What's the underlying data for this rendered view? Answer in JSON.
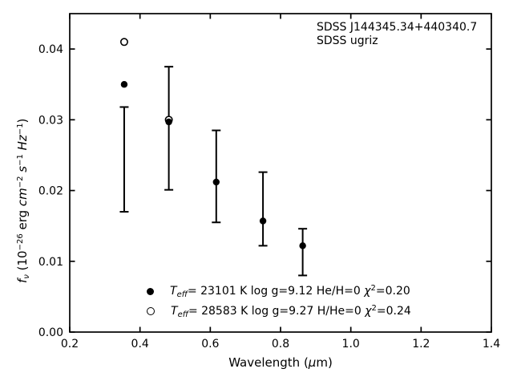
{
  "annotation": {
    "line1": "SDSS J144345.34+440340.7",
    "line2": "SDSS ugriz"
  },
  "chart_data": {
    "type": "scatter",
    "title": "",
    "xlabel_text": "Wavelength (μm)",
    "ylabel_text": "fν (10−26 erg cm−2 s−1 Hz−1)",
    "xlabel_segments": [
      {
        "text": "Wavelength ("
      },
      {
        "text": "μ",
        "italic": true
      },
      {
        "text": "m)"
      }
    ],
    "ylabel_segments": [
      {
        "text": "f",
        "italic": true
      },
      {
        "text": "ν",
        "italic": true,
        "script": "sub"
      },
      {
        "text": " (10"
      },
      {
        "text": "−26",
        "script": "sup"
      },
      {
        "text": " erg "
      },
      {
        "text": "cm",
        "italic": true
      },
      {
        "text": "−2",
        "script": "sup"
      },
      {
        "text": " "
      },
      {
        "text": "s",
        "italic": true
      },
      {
        "text": "−1",
        "script": "sup"
      },
      {
        "text": " "
      },
      {
        "text": "Hz",
        "italic": true
      },
      {
        "text": "−1",
        "script": "sup"
      },
      {
        "text": ")"
      }
    ],
    "xlim": [
      0.2,
      1.4
    ],
    "ylim": [
      0.0,
      0.045
    ],
    "x_ticks": {
      "values": [
        0.2,
        0.4,
        0.6,
        0.8,
        1.0,
        1.2,
        1.4
      ],
      "labels": [
        "0.2",
        "0.4",
        "0.6",
        "0.8",
        "1.0",
        "1.2",
        "1.4"
      ]
    },
    "y_ticks": {
      "values": [
        0.0,
        0.01,
        0.02,
        0.03,
        0.04
      ],
      "labels": [
        "0.00",
        "0.01",
        "0.02",
        "0.03",
        "0.04"
      ]
    },
    "grid": false,
    "tick_direction": "in",
    "colors": {
      "foreground": "#000000",
      "background": "#ffffff"
    },
    "series": [
      {
        "name": "observed-photometry",
        "type": "errorbar",
        "x": [
          0.355,
          0.482,
          0.617,
          0.75,
          0.863
        ],
        "y": [
          0.0244,
          0.0288,
          0.022,
          0.0174,
          0.0113
        ],
        "yerr": [
          0.0074,
          0.0087,
          0.0065,
          0.0052,
          0.0033
        ]
      },
      {
        "name": "model-fit-1",
        "type": "scatter",
        "marker": "filled-circle",
        "x": [
          0.355,
          0.482,
          0.617,
          0.75,
          0.863
        ],
        "y": [
          0.035,
          0.0297,
          0.0212,
          0.0157,
          0.0122
        ]
      },
      {
        "name": "model-fit-2",
        "type": "scatter",
        "marker": "open-circle",
        "x": [
          0.355,
          0.482
        ],
        "y": [
          0.041,
          0.03
        ]
      }
    ],
    "legend": {
      "position": "lower-center-inside",
      "rows": [
        {
          "marker": "filled-circle",
          "text": "Teff= 23101 K  log g=9.12  He/H=0  χ2=0.20",
          "segments": [
            {
              "text": "T",
              "italic": true
            },
            {
              "text": "eff",
              "italic": true,
              "script": "sub"
            },
            {
              "text": "= 23101 K  log g=9.12  He/H=0  "
            },
            {
              "text": "χ",
              "italic": true
            },
            {
              "text": "2",
              "script": "sup"
            },
            {
              "text": "=0.20"
            }
          ]
        },
        {
          "marker": "open-circle",
          "text": "Teff= 28583 K  log g=9.27  H/He=0  χ2=0.24",
          "segments": [
            {
              "text": "T",
              "italic": true
            },
            {
              "text": "eff",
              "italic": true,
              "script": "sub"
            },
            {
              "text": "= 28583 K  log g=9.27  H/He=0  "
            },
            {
              "text": "χ",
              "italic": true
            },
            {
              "text": "2",
              "script": "sup"
            },
            {
              "text": "=0.24"
            }
          ]
        }
      ]
    }
  }
}
